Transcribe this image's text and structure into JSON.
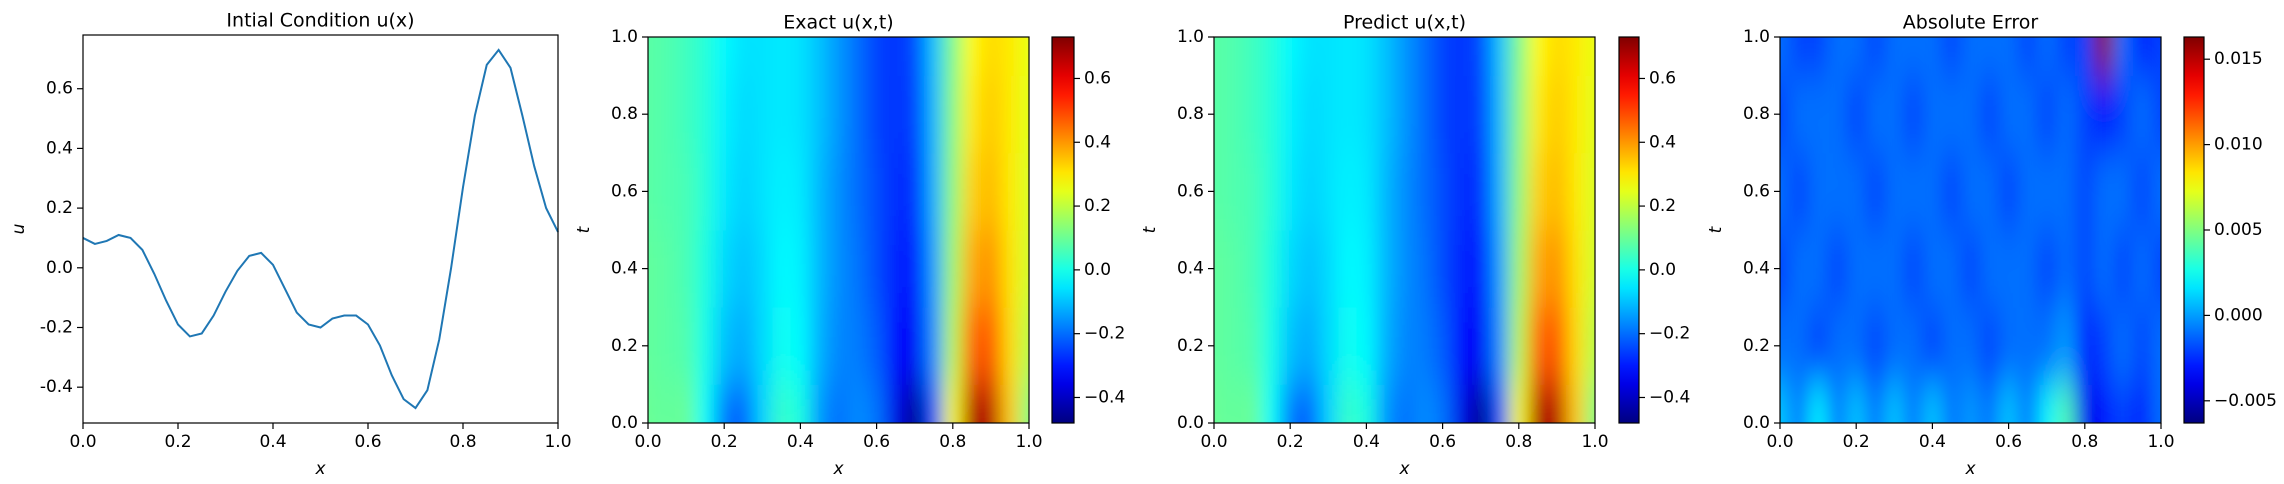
{
  "chart_data": [
    {
      "type": "line",
      "title": "Intial Condition u(x)",
      "xlabel": "x",
      "ylabel": "u",
      "color": "#1f77b4",
      "x": [
        0,
        0.025,
        0.05,
        0.075,
        0.1,
        0.125,
        0.15,
        0.175,
        0.2,
        0.225,
        0.25,
        0.275,
        0.3,
        0.325,
        0.35,
        0.375,
        0.4,
        0.425,
        0.45,
        0.475,
        0.5,
        0.525,
        0.55,
        0.575,
        0.6,
        0.625,
        0.65,
        0.675,
        0.7,
        0.725,
        0.75,
        0.775,
        0.8,
        0.825,
        0.85,
        0.875,
        0.9,
        0.925,
        0.95,
        0.975,
        1
      ],
      "values": [
        0.1,
        0.08,
        0.09,
        0.11,
        0.1,
        0.06,
        -0.02,
        -0.11,
        -0.19,
        -0.23,
        -0.22,
        -0.16,
        -0.08,
        -0.01,
        0.04,
        0.05,
        0.01,
        -0.07,
        -0.15,
        -0.19,
        -0.2,
        -0.17,
        -0.16,
        -0.16,
        -0.19,
        -0.26,
        -0.36,
        -0.44,
        -0.47,
        -0.41,
        -0.24,
        0.0,
        0.27,
        0.51,
        0.68,
        0.73,
        0.67,
        0.51,
        0.34,
        0.2,
        0.12
      ],
      "xlim": [
        0,
        1
      ],
      "ylim": [
        -0.52,
        0.78
      ],
      "xticks": [
        {
          "value": 0,
          "label": "0.0"
        },
        {
          "value": 0.2,
          "label": "0.2"
        },
        {
          "value": 0.4,
          "label": "0.4"
        },
        {
          "value": 0.6,
          "label": "0.6"
        },
        {
          "value": 0.8,
          "label": "0.8"
        },
        {
          "value": 1,
          "label": "1.0"
        }
      ],
      "yticks": [
        {
          "value": -0.4,
          "label": "-0.4"
        },
        {
          "value": -0.2,
          "label": "-0.2"
        },
        {
          "value": 0,
          "label": "0.0"
        },
        {
          "value": 0.2,
          "label": "0.2"
        },
        {
          "value": 0.4,
          "label": "0.4"
        },
        {
          "value": 0.6,
          "label": "0.6"
        }
      ]
    },
    {
      "type": "heatmap",
      "title": "Exact u(x,t)",
      "xlabel": "x",
      "ylabel": "t",
      "colormap": "jet",
      "x": [
        0,
        0.05,
        0.1,
        0.15,
        0.2,
        0.25,
        0.3,
        0.35,
        0.4,
        0.45,
        0.5,
        0.55,
        0.6,
        0.65,
        0.7,
        0.75,
        0.8,
        0.85,
        0.9,
        0.95,
        1
      ],
      "y": [
        0,
        0.2,
        0.4,
        0.6,
        0.8,
        1
      ],
      "z": [
        [
          0.1,
          0.09,
          0.1,
          -0.02,
          -0.19,
          -0.22,
          -0.08,
          0.04,
          0.01,
          -0.15,
          -0.2,
          -0.16,
          -0.19,
          -0.36,
          -0.47,
          -0.24,
          0.27,
          0.68,
          0.67,
          0.34,
          0.12
        ],
        [
          0.09,
          0.08,
          0.07,
          0.0,
          -0.1,
          -0.13,
          -0.07,
          -0.01,
          -0.03,
          -0.12,
          -0.17,
          -0.18,
          -0.22,
          -0.31,
          -0.34,
          -0.16,
          0.19,
          0.46,
          0.48,
          0.32,
          0.19
        ],
        [
          0.09,
          0.08,
          0.06,
          0.01,
          -0.07,
          -0.1,
          -0.07,
          -0.03,
          -0.04,
          -0.11,
          -0.16,
          -0.19,
          -0.24,
          -0.29,
          -0.3,
          -0.14,
          0.16,
          0.38,
          0.41,
          0.31,
          0.22
        ],
        [
          0.08,
          0.07,
          0.06,
          0.02,
          -0.05,
          -0.08,
          -0.06,
          -0.04,
          -0.05,
          -0.11,
          -0.16,
          -0.2,
          -0.24,
          -0.28,
          -0.27,
          -0.12,
          0.14,
          0.33,
          0.36,
          0.3,
          0.23
        ],
        [
          0.08,
          0.07,
          0.05,
          0.02,
          -0.04,
          -0.07,
          -0.06,
          -0.05,
          -0.06,
          -0.1,
          -0.15,
          -0.2,
          -0.25,
          -0.27,
          -0.25,
          -0.11,
          0.13,
          0.3,
          0.34,
          0.3,
          0.24
        ],
        [
          0.08,
          0.07,
          0.05,
          0.02,
          -0.03,
          -0.06,
          -0.06,
          -0.05,
          -0.06,
          -0.1,
          -0.15,
          -0.2,
          -0.25,
          -0.27,
          -0.24,
          -0.1,
          0.12,
          0.28,
          0.32,
          0.3,
          0.25
        ]
      ],
      "xlim": [
        0,
        1
      ],
      "ylim": [
        0,
        1
      ],
      "zlim": [
        -0.48,
        0.73
      ],
      "xticks": [
        {
          "value": 0,
          "label": "0.0"
        },
        {
          "value": 0.2,
          "label": "0.2"
        },
        {
          "value": 0.4,
          "label": "0.4"
        },
        {
          "value": 0.6,
          "label": "0.6"
        },
        {
          "value": 0.8,
          "label": "0.8"
        },
        {
          "value": 1,
          "label": "1.0"
        }
      ],
      "yticks": [
        {
          "value": 0,
          "label": "0.0"
        },
        {
          "value": 0.2,
          "label": "0.2"
        },
        {
          "value": 0.4,
          "label": "0.4"
        },
        {
          "value": 0.6,
          "label": "0.6"
        },
        {
          "value": 0.8,
          "label": "0.8"
        },
        {
          "value": 1,
          "label": "1.0"
        }
      ],
      "zticks": [
        {
          "value": -0.4,
          "label": "−0.4"
        },
        {
          "value": -0.2,
          "label": "−0.2"
        },
        {
          "value": 0,
          "label": "0.0"
        },
        {
          "value": 0.2,
          "label": "0.2"
        },
        {
          "value": 0.4,
          "label": "0.4"
        },
        {
          "value": 0.6,
          "label": "0.6"
        }
      ]
    },
    {
      "type": "heatmap",
      "title": "Predict u(x,t)",
      "xlabel": "x",
      "ylabel": "t",
      "colormap": "jet",
      "x": [
        0,
        0.05,
        0.1,
        0.15,
        0.2,
        0.25,
        0.3,
        0.35,
        0.4,
        0.45,
        0.5,
        0.55,
        0.6,
        0.65,
        0.7,
        0.75,
        0.8,
        0.85,
        0.9,
        0.95,
        1
      ],
      "y": [
        0,
        0.2,
        0.4,
        0.6,
        0.8,
        1
      ],
      "z": [
        [
          0.1,
          0.09,
          0.1,
          -0.02,
          -0.19,
          -0.22,
          -0.08,
          0.04,
          0.01,
          -0.15,
          -0.2,
          -0.16,
          -0.19,
          -0.36,
          -0.47,
          -0.24,
          0.27,
          0.68,
          0.67,
          0.34,
          0.12
        ],
        [
          0.09,
          0.08,
          0.07,
          0.0,
          -0.1,
          -0.13,
          -0.07,
          -0.01,
          -0.03,
          -0.12,
          -0.17,
          -0.18,
          -0.22,
          -0.31,
          -0.34,
          -0.16,
          0.19,
          0.46,
          0.48,
          0.32,
          0.19
        ],
        [
          0.09,
          0.08,
          0.06,
          0.01,
          -0.07,
          -0.1,
          -0.07,
          -0.03,
          -0.04,
          -0.11,
          -0.16,
          -0.19,
          -0.24,
          -0.29,
          -0.3,
          -0.14,
          0.16,
          0.38,
          0.41,
          0.31,
          0.22
        ],
        [
          0.08,
          0.07,
          0.06,
          0.02,
          -0.05,
          -0.08,
          -0.06,
          -0.04,
          -0.05,
          -0.11,
          -0.16,
          -0.2,
          -0.24,
          -0.28,
          -0.27,
          -0.12,
          0.14,
          0.33,
          0.36,
          0.3,
          0.23
        ],
        [
          0.08,
          0.07,
          0.05,
          0.02,
          -0.04,
          -0.07,
          -0.06,
          -0.05,
          -0.06,
          -0.1,
          -0.15,
          -0.2,
          -0.25,
          -0.27,
          -0.25,
          -0.11,
          0.13,
          0.3,
          0.34,
          0.3,
          0.24
        ],
        [
          0.08,
          0.07,
          0.05,
          0.02,
          -0.03,
          -0.06,
          -0.06,
          -0.05,
          -0.06,
          -0.1,
          -0.15,
          -0.2,
          -0.25,
          -0.27,
          -0.24,
          -0.1,
          0.12,
          0.28,
          0.32,
          0.3,
          0.25
        ]
      ],
      "xlim": [
        0,
        1
      ],
      "ylim": [
        0,
        1
      ],
      "zlim": [
        -0.48,
        0.73
      ],
      "xticks": [
        {
          "value": 0,
          "label": "0.0"
        },
        {
          "value": 0.2,
          "label": "0.2"
        },
        {
          "value": 0.4,
          "label": "0.4"
        },
        {
          "value": 0.6,
          "label": "0.6"
        },
        {
          "value": 0.8,
          "label": "0.8"
        },
        {
          "value": 1,
          "label": "1.0"
        }
      ],
      "yticks": [
        {
          "value": 0,
          "label": "0.0"
        },
        {
          "value": 0.2,
          "label": "0.2"
        },
        {
          "value": 0.4,
          "label": "0.4"
        },
        {
          "value": 0.6,
          "label": "0.6"
        },
        {
          "value": 0.8,
          "label": "0.8"
        },
        {
          "value": 1,
          "label": "1.0"
        }
      ],
      "zticks": [
        {
          "value": -0.4,
          "label": "−0.4"
        },
        {
          "value": -0.2,
          "label": "−0.2"
        },
        {
          "value": 0,
          "label": "0.0"
        },
        {
          "value": 0.2,
          "label": "0.2"
        },
        {
          "value": 0.4,
          "label": "0.4"
        },
        {
          "value": 0.6,
          "label": "0.6"
        }
      ]
    },
    {
      "type": "heatmap",
      "title": "Absolute Error",
      "xlabel": "x",
      "ylabel": "t",
      "colormap": "jet",
      "x": [
        0,
        0.05,
        0.1,
        0.15,
        0.2,
        0.25,
        0.3,
        0.35,
        0.4,
        0.45,
        0.5,
        0.55,
        0.6,
        0.65,
        0.7,
        0.75,
        0.8,
        0.85,
        0.9,
        0.95,
        1
      ],
      "y": [
        0,
        0.2,
        0.4,
        0.6,
        0.8,
        1
      ],
      "z": [
        [
          0.001,
          -0.001,
          0.002,
          -0.001,
          0.001,
          -0.001,
          0.001,
          -0.001,
          0.001,
          -0.001,
          0.0,
          -0.001,
          0.001,
          -0.001,
          0.002,
          0.004,
          -0.004,
          -0.003,
          -0.002,
          -0.003,
          -0.001
        ],
        [
          -0.001,
          -0.001,
          -0.002,
          -0.001,
          -0.001,
          -0.002,
          -0.001,
          -0.001,
          -0.002,
          -0.001,
          -0.001,
          -0.002,
          -0.001,
          -0.001,
          -0.001,
          0.0,
          -0.003,
          -0.002,
          -0.001,
          -0.002,
          -0.001
        ],
        [
          -0.002,
          -0.001,
          -0.001,
          -0.002,
          -0.001,
          -0.001,
          -0.001,
          -0.002,
          -0.001,
          -0.001,
          -0.002,
          -0.001,
          -0.001,
          -0.001,
          -0.002,
          -0.001,
          -0.002,
          -0.001,
          -0.002,
          -0.001,
          -0.002
        ],
        [
          -0.001,
          -0.002,
          -0.001,
          -0.001,
          -0.001,
          -0.002,
          -0.001,
          -0.001,
          -0.001,
          -0.002,
          -0.001,
          -0.001,
          -0.002,
          -0.001,
          -0.001,
          -0.001,
          -0.002,
          -0.001,
          -0.001,
          -0.002,
          -0.001
        ],
        [
          -0.002,
          -0.001,
          -0.001,
          -0.001,
          -0.002,
          -0.001,
          -0.001,
          -0.002,
          -0.001,
          -0.001,
          -0.001,
          -0.002,
          -0.001,
          -0.001,
          -0.002,
          -0.001,
          -0.002,
          -0.003,
          -0.002,
          -0.001,
          -0.002
        ],
        [
          -0.001,
          -0.002,
          -0.002,
          -0.001,
          -0.001,
          -0.002,
          -0.001,
          -0.001,
          -0.001,
          -0.002,
          -0.001,
          -0.001,
          -0.001,
          -0.002,
          -0.001,
          -0.002,
          -0.002,
          0.016,
          -0.001,
          -0.003,
          -0.002
        ]
      ],
      "xlim": [
        0,
        1
      ],
      "ylim": [
        0,
        1
      ],
      "zlim": [
        -0.0063,
        0.0163
      ],
      "xticks": [
        {
          "value": 0,
          "label": "0.0"
        },
        {
          "value": 0.2,
          "label": "0.2"
        },
        {
          "value": 0.4,
          "label": "0.4"
        },
        {
          "value": 0.6,
          "label": "0.6"
        },
        {
          "value": 0.8,
          "label": "0.8"
        },
        {
          "value": 1,
          "label": "1.0"
        }
      ],
      "yticks": [
        {
          "value": 0,
          "label": "0.0"
        },
        {
          "value": 0.2,
          "label": "0.2"
        },
        {
          "value": 0.4,
          "label": "0.4"
        },
        {
          "value": 0.6,
          "label": "0.6"
        },
        {
          "value": 0.8,
          "label": "0.8"
        },
        {
          "value": 1,
          "label": "1.0"
        }
      ],
      "zticks": [
        {
          "value": -0.005,
          "label": "−0.005"
        },
        {
          "value": 0,
          "label": "0.000"
        },
        {
          "value": 0.005,
          "label": "0.005"
        },
        {
          "value": 0.01,
          "label": "0.010"
        },
        {
          "value": 0.015,
          "label": "0.015"
        }
      ]
    }
  ]
}
